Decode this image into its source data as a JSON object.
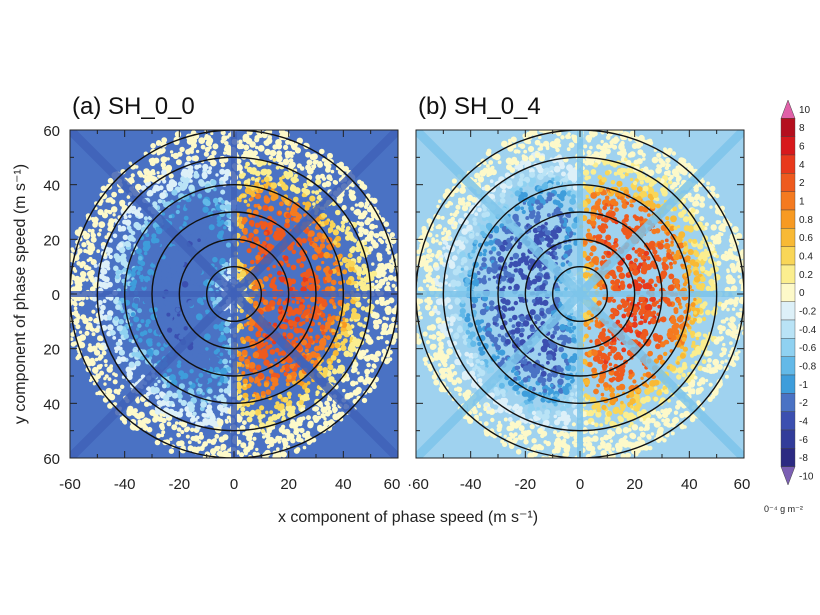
{
  "chart_data": [
    {
      "type": "heatmap",
      "panel_label": "(a) SH_0_0",
      "ylabel": "y component of phase speed (m s⁻¹)",
      "xlim": [
        -60,
        60
      ],
      "ylim": [
        -60,
        60
      ],
      "x_ticks": [
        "-60",
        "-40",
        "-20",
        "0",
        "20",
        "40",
        "60"
      ],
      "y_ticks": [
        "60",
        "40",
        "20",
        "0",
        "20",
        "40",
        "60"
      ],
      "rings": [
        10,
        20,
        30,
        40,
        50,
        60
      ],
      "background_color": "#4a72c4",
      "pattern": {
        "west_min": -3,
        "east_max": 3
      }
    },
    {
      "type": "heatmap",
      "panel_label": "(b) SH_0_4",
      "xlim": [
        -60,
        60
      ],
      "ylim": [
        -60,
        60
      ],
      "x_ticks": [
        "·60",
        "-40",
        "-20",
        "0",
        "20",
        "40",
        "60"
      ],
      "rings": [
        10,
        20,
        30,
        40,
        50,
        60
      ],
      "background_color": "#9fd2ef",
      "pattern": {
        "west_min": -4.5,
        "east_max": 3.5
      }
    }
  ],
  "shared": {
    "xlabel": "x component of phase speed (m s⁻¹)",
    "grid": false
  },
  "colorbar": {
    "labels": [
      "10",
      "8",
      "6",
      "4",
      "2",
      "1",
      "0.8",
      "0.6",
      "0.4",
      "0.2",
      "0",
      "-0.2",
      "-0.4",
      "-0.6",
      "-0.8",
      "-1",
      "-2",
      "-4",
      "-6",
      "-8",
      "-10"
    ],
    "levels": [
      10,
      8,
      6,
      4,
      2,
      1,
      0.8,
      0.6,
      0.4,
      0.2,
      0,
      -0.2,
      -0.4,
      -0.6,
      -0.8,
      -1,
      -2,
      -4,
      -6,
      -8,
      -10
    ],
    "colors": [
      "#e060a8",
      "#b40f1e",
      "#d7191c",
      "#e8391c",
      "#ee5a1e",
      "#f47a20",
      "#f79a22",
      "#f8b935",
      "#f9d658",
      "#fbee8f",
      "#fdf9c9",
      "#ddf0f8",
      "#b9e3f6",
      "#8fd1f1",
      "#63b9e8",
      "#3e9ddb",
      "#4a72c4",
      "#3b4fb0",
      "#323c9a",
      "#2c2a82",
      "#7b5fb3"
    ],
    "unit": "0⁻⁴ g m⁻²"
  }
}
